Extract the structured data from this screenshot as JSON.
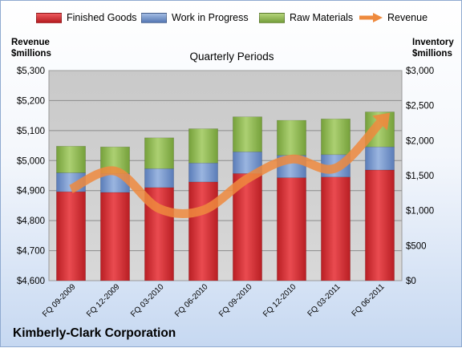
{
  "company": "Kimberly-Clark Corporation",
  "colors": {
    "finished_goods": "#d3272c",
    "work_in_progress": "#6d8ec6",
    "raw_materials": "#8fb552",
    "revenue": "#ee8a3e",
    "plot_bg": "#cccccc"
  },
  "chart_data": {
    "type": "bar",
    "stacked": true,
    "title": "Quarterly Periods",
    "legend_position": "top",
    "grid": true,
    "categories": [
      "FQ 09-2009",
      "FQ 12-2009",
      "FQ 03-2010",
      "FQ 06-2010",
      "FQ 09-2010",
      "FQ 12-2010",
      "FQ 03-2011",
      "FQ 06-2011"
    ],
    "left_axis": {
      "label": [
        "Revenue",
        "$millions"
      ],
      "range": [
        4600,
        5300
      ],
      "ticks": [
        "$4,600",
        "$4,700",
        "$4,800",
        "$4,900",
        "$5,000",
        "$5,100",
        "$5,200",
        "$5,300"
      ]
    },
    "right_axis": {
      "label": [
        "Inventory",
        "$millions"
      ],
      "range": [
        0,
        3000
      ],
      "ticks": [
        "$0",
        "$500",
        "$1,000",
        "$1,500",
        "$2,000",
        "$2,500",
        "$3,000"
      ]
    },
    "series": [
      {
        "name": "Finished Goods",
        "axis": "right",
        "values": [
          1270,
          1260,
          1330,
          1410,
          1530,
          1470,
          1480,
          1580
        ]
      },
      {
        "name": "Work in Progress",
        "axis": "right",
        "values": [
          270,
          270,
          270,
          270,
          310,
          320,
          320,
          330
        ]
      },
      {
        "name": "Raw Materials",
        "axis": "right",
        "values": [
          380,
          380,
          440,
          490,
          500,
          500,
          510,
          500
        ]
      },
      {
        "name": "Revenue",
        "axis": "left",
        "type": "line",
        "arrow": true,
        "values": [
          4905,
          4965,
          4840,
          4835,
          4940,
          5005,
          4975,
          5125
        ]
      }
    ]
  }
}
